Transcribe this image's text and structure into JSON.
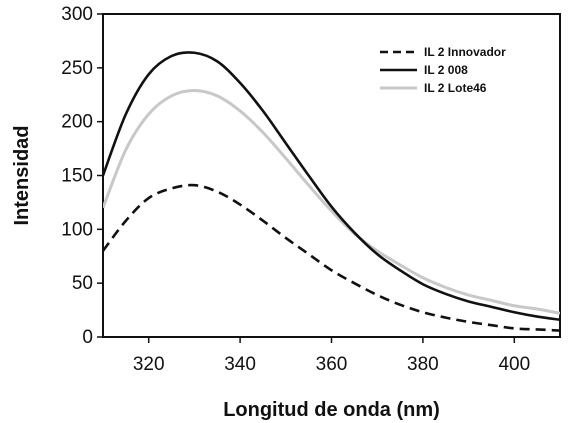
{
  "chart_data": {
    "type": "line",
    "title": "",
    "xlabel": "Longitud de onda (nm)",
    "ylabel": "Intensidad",
    "xlim": [
      310,
      410
    ],
    "ylim": [
      0,
      300
    ],
    "x_ticks": [
      320,
      340,
      360,
      380,
      400
    ],
    "y_ticks": [
      0,
      50,
      100,
      150,
      200,
      250,
      300
    ],
    "grid": false,
    "legend_position": "top-right",
    "x": [
      310,
      315,
      320,
      325,
      330,
      335,
      340,
      345,
      350,
      355,
      360,
      365,
      370,
      375,
      380,
      385,
      390,
      395,
      400,
      405,
      410
    ],
    "series": [
      {
        "name": "IL 2 Innovador",
        "line_style": "dashed",
        "color": "#111111",
        "values": [
          80,
          108,
          129,
          138,
          141,
          135,
          123,
          108,
          92,
          77,
          62,
          50,
          39,
          30,
          23,
          18,
          14,
          11,
          8,
          7,
          6
        ]
      },
      {
        "name": "IL 2 008",
        "line_style": "solid",
        "color": "#111111",
        "values": [
          150,
          207,
          244,
          261,
          264,
          256,
          236,
          210,
          180,
          150,
          121,
          97,
          77,
          62,
          49,
          40,
          33,
          28,
          23,
          19,
          16
        ]
      },
      {
        "name": "IL 2 Lote46",
        "line_style": "solid",
        "color": "#c8c8c8",
        "values": [
          120,
          174,
          207,
          224,
          229,
          224,
          210,
          190,
          166,
          141,
          117,
          96,
          80,
          67,
          55,
          46,
          39,
          34,
          29,
          26,
          22
        ]
      }
    ]
  }
}
